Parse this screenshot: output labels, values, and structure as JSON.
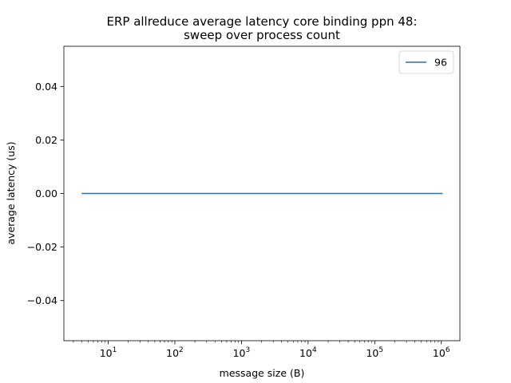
{
  "chart_data": {
    "type": "line",
    "title_line1": "ERP allreduce average latency core binding ppn 48:",
    "title_line2": "sweep over process count",
    "xlabel": "message size (B)",
    "ylabel": "average latency (us)",
    "xscale": "log",
    "xlim": [
      2.16,
      1900000.0
    ],
    "ylim": [
      -0.055,
      0.055
    ],
    "x_ticks": [
      {
        "value": 10,
        "base": "10",
        "exp": "1"
      },
      {
        "value": 100,
        "base": "10",
        "exp": "2"
      },
      {
        "value": 1000,
        "base": "10",
        "exp": "3"
      },
      {
        "value": 10000,
        "base": "10",
        "exp": "4"
      },
      {
        "value": 100000,
        "base": "10",
        "exp": "5"
      },
      {
        "value": 1000000,
        "base": "10",
        "exp": "6"
      }
    ],
    "y_ticks": [
      {
        "value": 0.04,
        "label": "0.04"
      },
      {
        "value": 0.02,
        "label": "0.02"
      },
      {
        "value": 0.0,
        "label": "0.00"
      },
      {
        "value": -0.02,
        "label": "−0.02"
      },
      {
        "value": -0.04,
        "label": "−0.04"
      }
    ],
    "grid": false,
    "legend_position": "top-right",
    "series": [
      {
        "name": "96",
        "color": "#1f77b4",
        "x": [
          4,
          8,
          16,
          32,
          64,
          128,
          256,
          512,
          1024,
          2048,
          4096,
          8192,
          16384,
          32768,
          65536,
          131072,
          262144,
          524288,
          1048576
        ],
        "y": [
          0,
          0,
          0,
          0,
          0,
          0,
          0,
          0,
          0,
          0,
          0,
          0,
          0,
          0,
          0,
          0,
          0,
          0,
          0
        ]
      }
    ]
  }
}
